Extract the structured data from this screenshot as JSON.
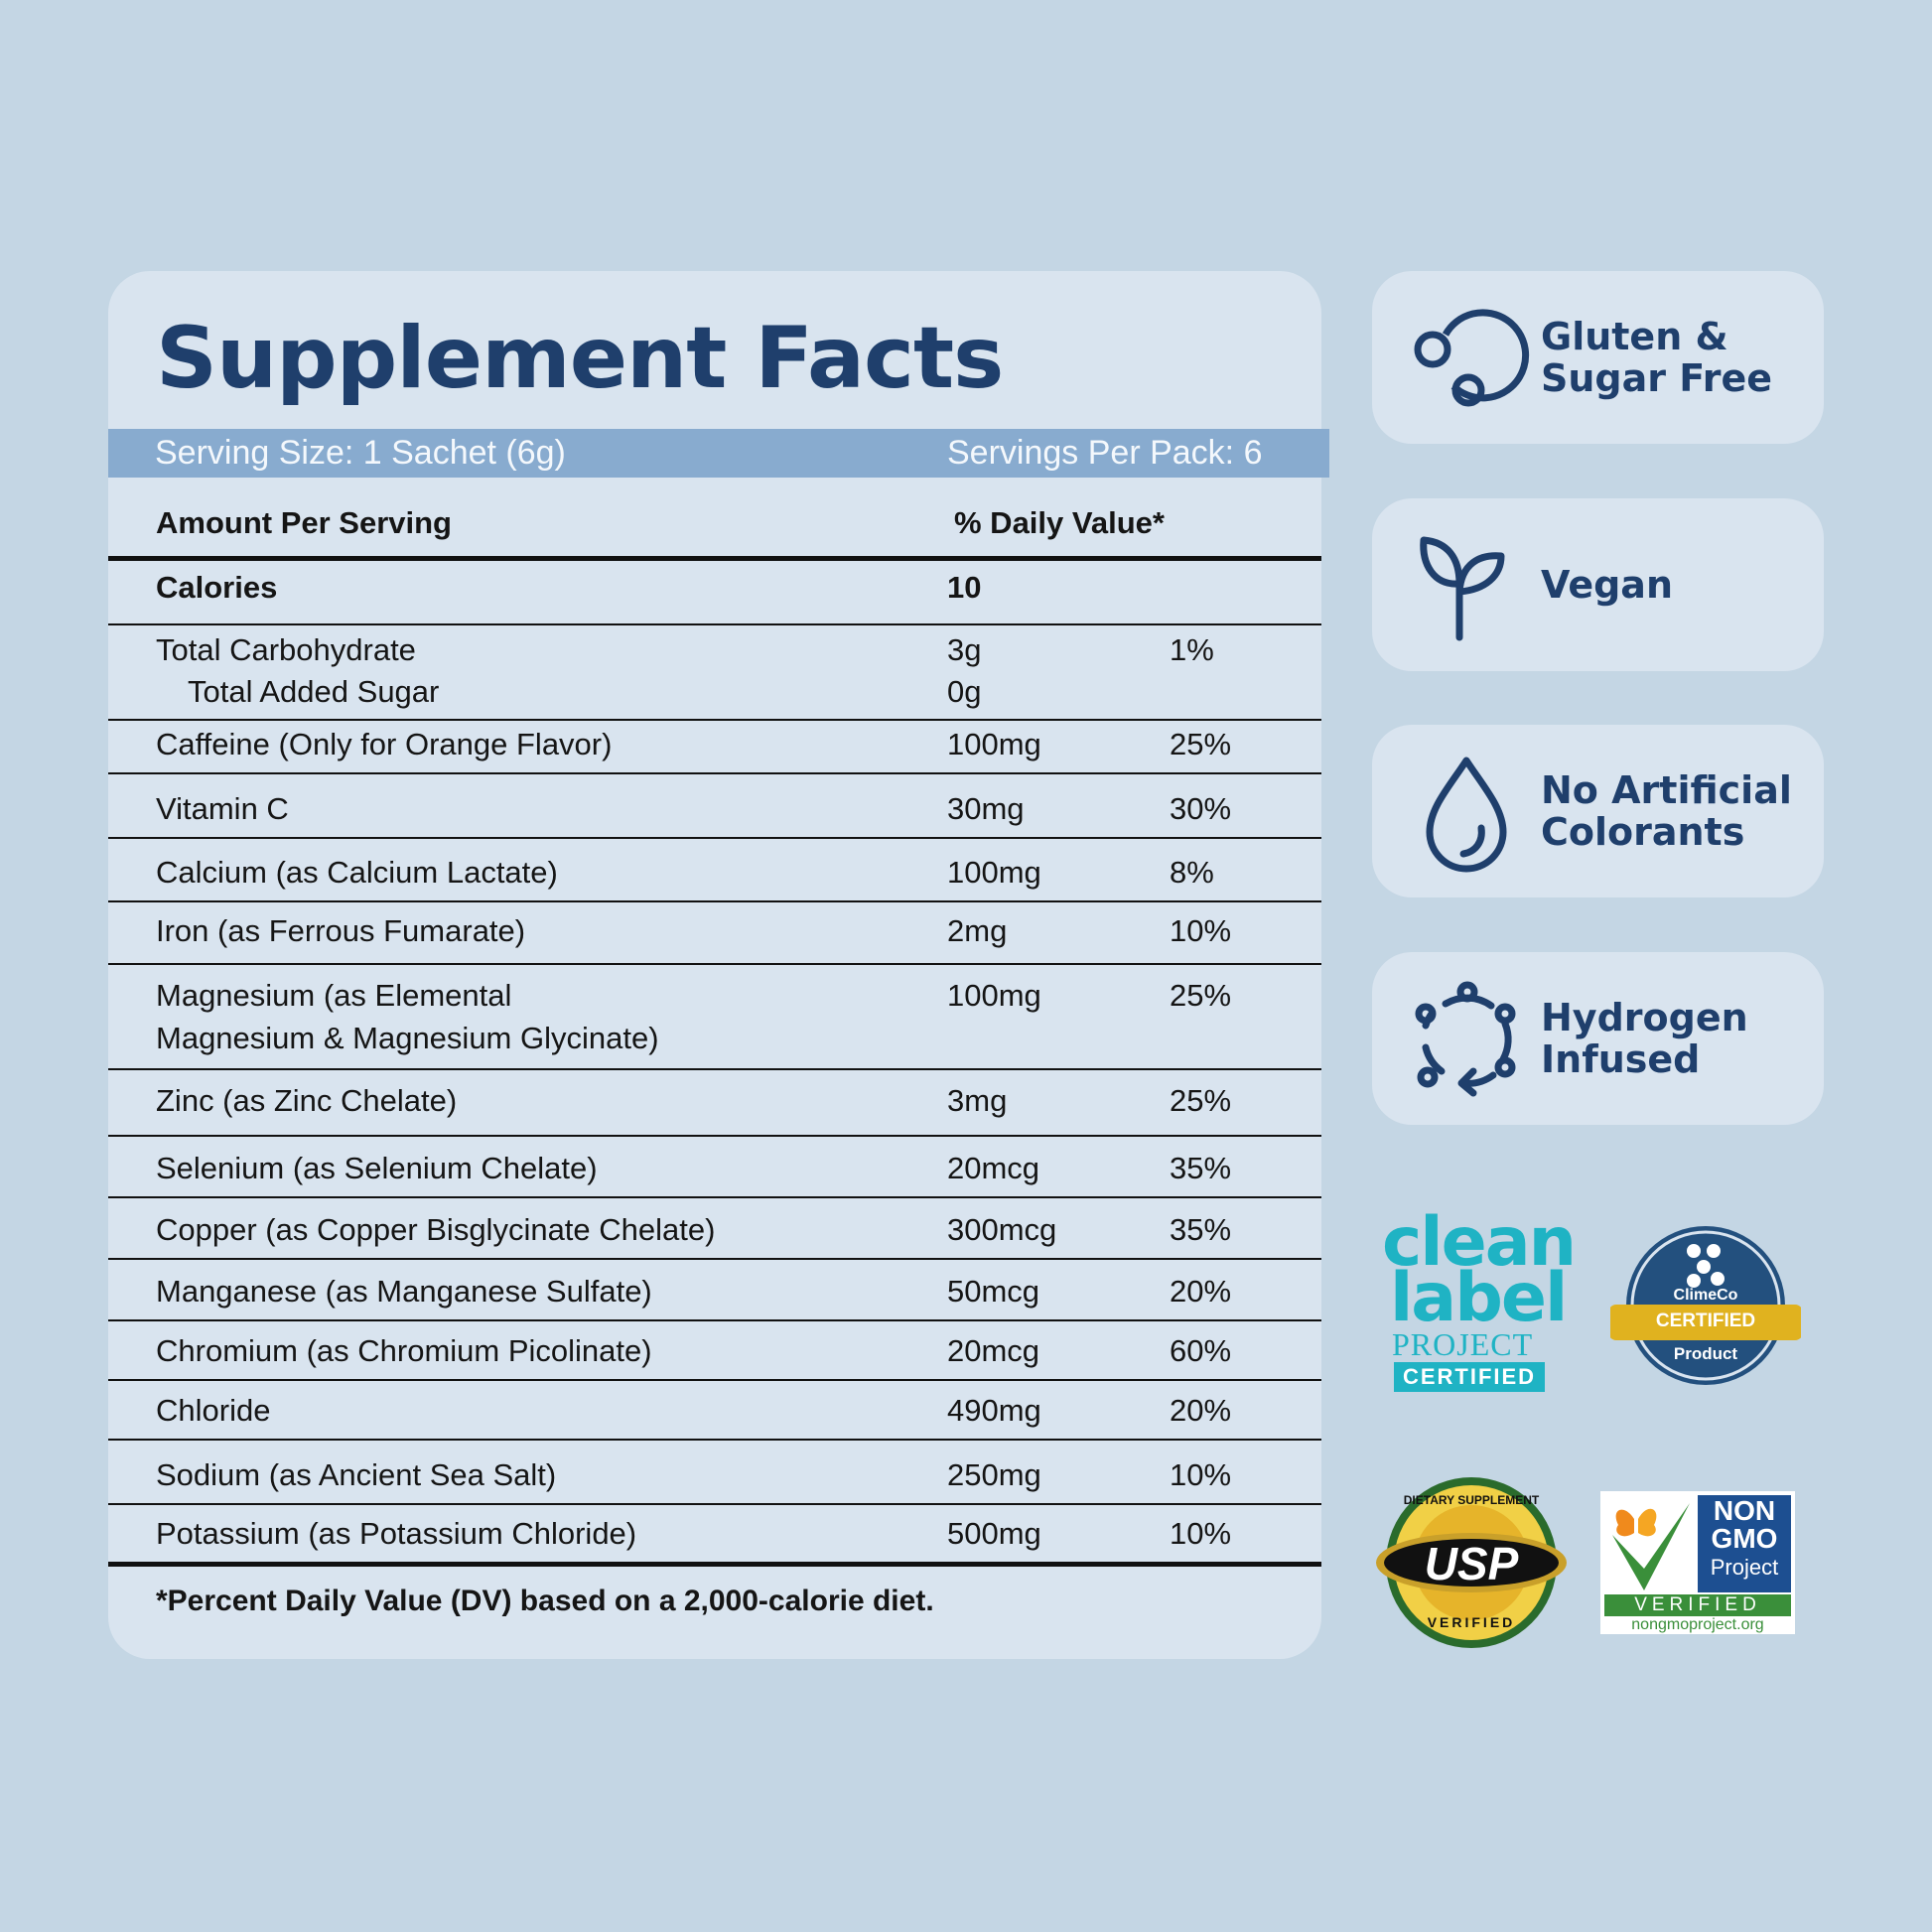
{
  "facts": {
    "title": "Supplement Facts",
    "serving_size": "Serving Size: 1 Sachet (6g)",
    "servings_per_pack": "Servings Per Pack: 6",
    "header_amount": "Amount Per Serving",
    "header_dv": "% Daily Value*",
    "calories_label": "Calories",
    "calories_value": "10",
    "rows": [
      {
        "name": "Total Carbohydrate",
        "sub": "Total Added Sugar",
        "amount": "3g",
        "sub_amount": "0g",
        "dv": "1%"
      },
      {
        "name": "Caffeine (Only for Orange Flavor)",
        "amount": "100mg",
        "dv": "25%"
      },
      {
        "name": "Vitamin C",
        "amount": "30mg",
        "dv": "30%"
      },
      {
        "name": "Calcium (as Calcium Lactate)",
        "amount": "100mg",
        "dv": "8%"
      },
      {
        "name": "Iron (as Ferrous Fumarate)",
        "amount": "2mg",
        "dv": "10%"
      },
      {
        "name": "Magnesium (as Elemental",
        "name2": "Magnesium & Magnesium Glycinate)",
        "amount": "100mg",
        "dv": "25%"
      },
      {
        "name": "Zinc (as Zinc Chelate)",
        "amount": "3mg",
        "dv": "25%"
      },
      {
        "name": "Selenium (as Selenium Chelate)",
        "amount": "20mcg",
        "dv": "35%"
      },
      {
        "name": "Copper (as Copper Bisglycinate Chelate)",
        "amount": "300mcg",
        "dv": "35%"
      },
      {
        "name": "Manganese (as Manganese Sulfate)",
        "amount": "50mcg",
        "dv": "20%"
      },
      {
        "name": "Chromium (as Chromium Picolinate)",
        "amount": "20mcg",
        "dv": "60%"
      },
      {
        "name": "Chloride",
        "amount": "490mg",
        "dv": "20%"
      },
      {
        "name": "Sodium (as Ancient Sea Salt)",
        "amount": "250mg",
        "dv": "10%"
      },
      {
        "name": "Potassium (as Potassium Chloride)",
        "amount": "500mg",
        "dv": "10%"
      }
    ],
    "footnote": "*Percent Daily Value (DV) based on a 2,000-calorie diet."
  },
  "badges": [
    {
      "line1": "Gluten &",
      "line2": "Sugar Free",
      "icon": "molecule-icon"
    },
    {
      "line1": "Vegan",
      "line2": "",
      "icon": "sprout-icon"
    },
    {
      "line1": "No Artificial",
      "line2": "Colorants",
      "icon": "droplet-icon"
    },
    {
      "line1": "Hydrogen",
      "line2": "Infused",
      "icon": "cycle-icon"
    }
  ],
  "certifications": {
    "clean_label": {
      "line1": "clean",
      "line2": "label",
      "line3": "PROJECT",
      "line4": "CERTIFIED"
    },
    "climeco": {
      "brand": "ClimeCo",
      "ribbon": "CERTIFIED",
      "bottom": "Product"
    },
    "usp": {
      "top": "DIETARY SUPPLEMENT",
      "center": "USP",
      "bottom": "VERIFIED"
    },
    "non_gmo": {
      "line1": "NON",
      "line2": "GMO",
      "line3": "Project",
      "line4": "VERIFIED",
      "url": "nongmoproject.org"
    }
  },
  "colors": {
    "navy": "#1f3f6c",
    "bar": "#88abcf",
    "background": "#c4d6e4",
    "card": "#d9e4ef",
    "teal": "#1fb3c4"
  }
}
